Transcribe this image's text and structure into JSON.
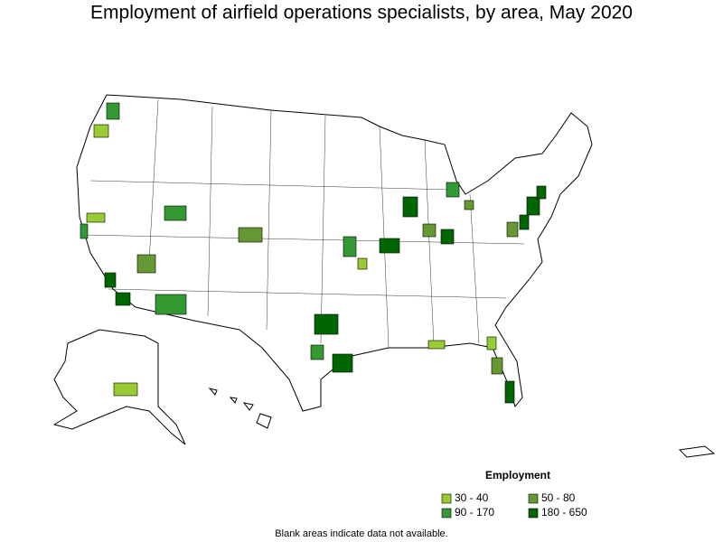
{
  "title": "Employment of airfield operations specialists, by area, May 2020",
  "legend": {
    "title": "Employment",
    "items": [
      {
        "label": "30 - 40",
        "color": "#99cc33"
      },
      {
        "label": "50 - 80",
        "color": "#669933"
      },
      {
        "label": "90 - 170",
        "color": "#339933"
      },
      {
        "label": "180 - 650",
        "color": "#006600"
      }
    ]
  },
  "footnote": "Blank areas indicate data not available."
}
